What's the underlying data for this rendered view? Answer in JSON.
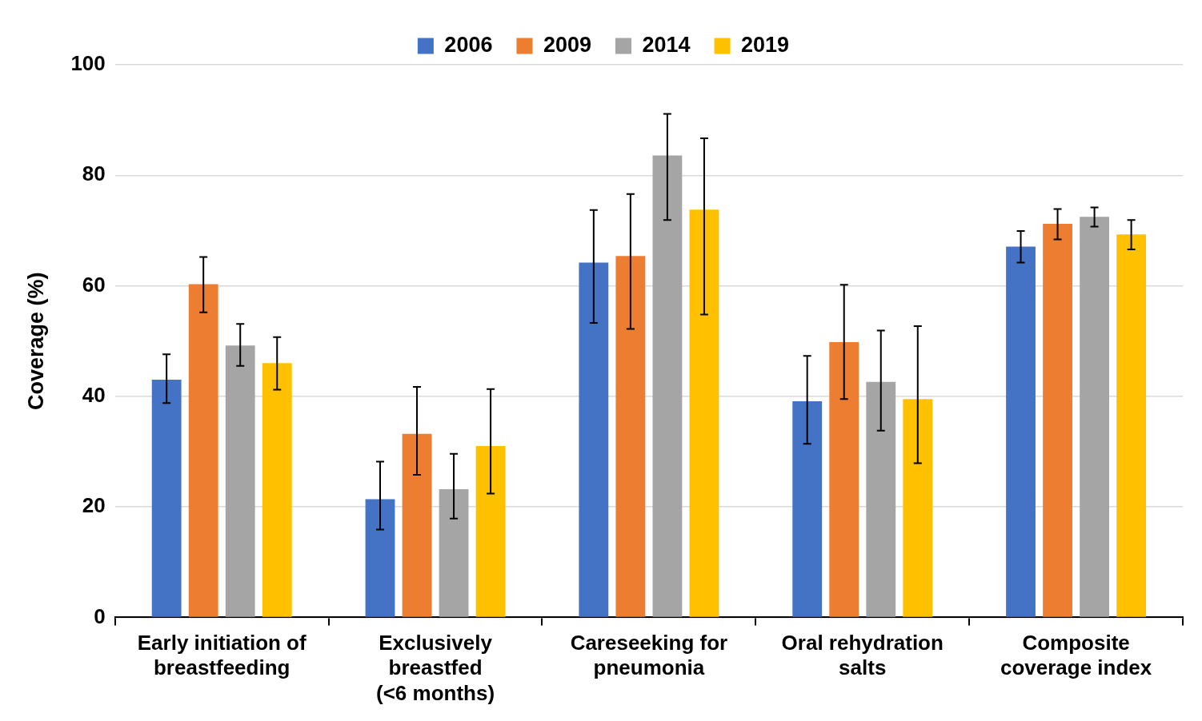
{
  "chart_data": {
    "type": "bar",
    "y_label": "Coverage (%)",
    "categories": [
      [
        "Early initiation of",
        "breastfeeding"
      ],
      [
        "Exclusively",
        "breastfed",
        "(<6 months)"
      ],
      [
        "Careseeking for",
        "pneumonia"
      ],
      [
        "Oral rehydration",
        "salts"
      ],
      [
        "Composite",
        "coverage index"
      ]
    ],
    "series": [
      {
        "name": "2006",
        "color": "#4472c4",
        "values": [
          43.0,
          21.4,
          64.2,
          39.1,
          67.1
        ],
        "lower": [
          38.8,
          15.9,
          53.3,
          31.4,
          64.2
        ],
        "upper": [
          47.6,
          28.2,
          73.7,
          47.3,
          69.9
        ]
      },
      {
        "name": "2009",
        "color": "#ed7d31",
        "values": [
          60.3,
          33.2,
          65.4,
          49.8,
          71.2
        ],
        "lower": [
          55.2,
          25.8,
          52.2,
          39.5,
          68.4
        ],
        "upper": [
          65.2,
          41.7,
          76.6,
          60.2,
          73.9
        ]
      },
      {
        "name": "2014",
        "color": "#a5a5a5",
        "values": [
          49.2,
          23.2,
          83.6,
          42.6,
          72.5
        ],
        "lower": [
          45.5,
          17.9,
          71.9,
          33.8,
          70.7
        ],
        "upper": [
          53.1,
          29.6,
          91.1,
          51.9,
          74.2
        ]
      },
      {
        "name": "2019",
        "color": "#ffc000",
        "values": [
          46.0,
          31.0,
          73.8,
          39.5,
          69.3
        ],
        "lower": [
          41.2,
          22.4,
          54.8,
          27.9,
          66.6
        ],
        "upper": [
          50.7,
          41.3,
          86.7,
          52.7,
          71.9
        ]
      }
    ],
    "ylim": [
      0,
      100
    ],
    "yticks": [
      0,
      20,
      40,
      60,
      80,
      100
    ],
    "grid": true,
    "legend": "top"
  }
}
